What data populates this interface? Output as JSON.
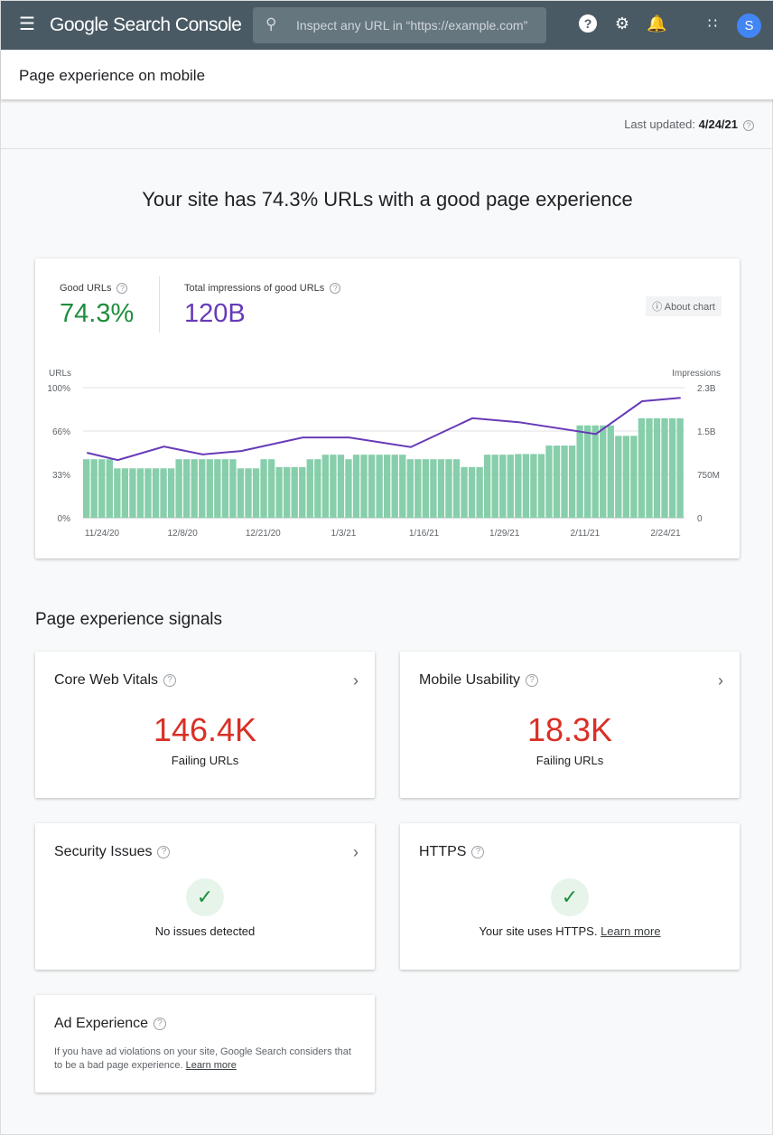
{
  "header": {
    "app_name": "Google Search Console",
    "search_placeholder": "Inspect any URL in “https://example.com”",
    "avatar_letter": "S"
  },
  "page": {
    "title": "Page experience on mobile",
    "last_updated_label": "Last updated:",
    "last_updated_value": "4/24/21"
  },
  "headline": "Your site has 74.3% URLs with a good page experience",
  "summary": {
    "good_urls_label": "Good URLs",
    "good_urls_value": "74.3%",
    "impressions_label": "Total impressions of good URLs",
    "impressions_value": "120B",
    "about_chart": "About chart"
  },
  "colors": {
    "header": "#4a5a64",
    "good": "#1e8e3e",
    "impressions": "#673ab7",
    "bars": "#87ceab",
    "failing": "#d93025"
  },
  "chart_data": {
    "type": "bar+line",
    "left_axis_label": "URLs",
    "right_axis_label": "Impressions",
    "left_ticks": [
      "100%",
      "66%",
      "33%",
      "0%"
    ],
    "right_ticks": [
      "2.3B",
      "1.5B",
      "750M",
      "0"
    ],
    "left_ylim": [
      0,
      100
    ],
    "right_ylim": [
      0,
      2.3
    ],
    "x_tick_labels": [
      "11/24/20",
      "12/8/20",
      "12/21/20",
      "1/3/21",
      "1/16/21",
      "1/29/21",
      "2/11/21",
      "2/24/21"
    ],
    "bars_percent": [
      45,
      45,
      45,
      45,
      38,
      38,
      38,
      38,
      38,
      38,
      38,
      38,
      45,
      45,
      45,
      45,
      45,
      45,
      45,
      45,
      38,
      38,
      38,
      45,
      45,
      39,
      39,
      39,
      39,
      45,
      45,
      48.5,
      48.5,
      48.5,
      45,
      48.5,
      48.5,
      48.5,
      48.5,
      48.5,
      48.5,
      48.5,
      45,
      45,
      45,
      45,
      45,
      45,
      45,
      39,
      39,
      39,
      48.5,
      48.5,
      48.5,
      48.5,
      49,
      49,
      49,
      49,
      55.5,
      55.5,
      55.5,
      55.5,
      71,
      71,
      71,
      71,
      71,
      63,
      63,
      63,
      76.5,
      76.5,
      76.5,
      76.5,
      76.5,
      76.5
    ],
    "impressions_billions": {
      "bar_index": [
        0,
        4,
        10,
        15,
        20,
        28,
        34,
        42,
        50,
        56,
        66,
        72,
        77
      ],
      "values": [
        1.15,
        1.02,
        1.26,
        1.12,
        1.18,
        1.42,
        1.42,
        1.25,
        1.76,
        1.69,
        1.48,
        2.06,
        2.12
      ]
    },
    "grid": true
  },
  "signals": {
    "heading": "Page experience signals",
    "cwv": {
      "title": "Core Web Vitals",
      "value": "146.4K",
      "sub": "Failing URLs"
    },
    "mobile": {
      "title": "Mobile Usability",
      "value": "18.3K",
      "sub": "Failing URLs"
    },
    "security": {
      "title": "Security Issues",
      "message": "No issues detected"
    },
    "https": {
      "title": "HTTPS",
      "message": "Your site uses HTTPS.",
      "link": "Learn more"
    },
    "ads": {
      "title": "Ad Experience",
      "message": "If you have ad violations on your site, Google Search considers that to be a bad page experience.",
      "link": "Learn more"
    }
  }
}
